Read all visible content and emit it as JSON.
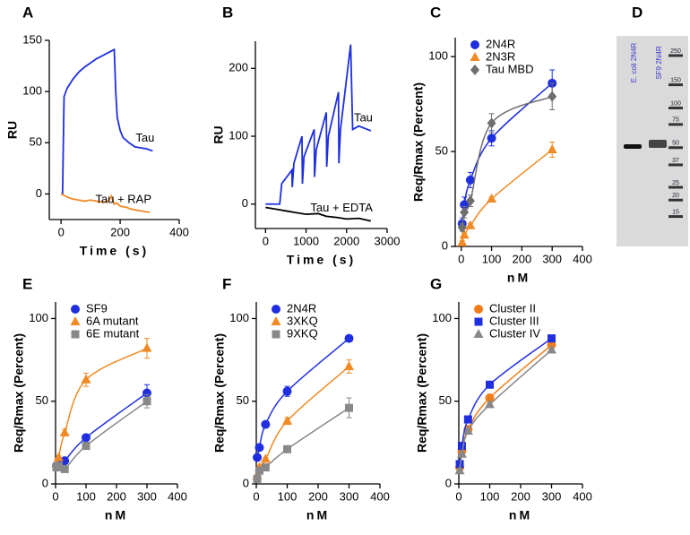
{
  "chart_data": [
    {
      "type": "line",
      "panel": "A",
      "x_label": "Time (s)",
      "y_label": "RU",
      "xlim": [
        -40,
        400
      ],
      "xticks": [
        0,
        200,
        400
      ],
      "ylim": [
        -25,
        150
      ],
      "yticks": [
        0,
        50,
        100,
        150
      ],
      "series": [
        {
          "name": "Tau",
          "color": "#1f2fe0",
          "x": [
            0,
            5,
            10,
            20,
            40,
            60,
            80,
            100,
            120,
            140,
            160,
            180,
            185,
            190,
            200,
            210,
            230,
            250,
            270,
            290,
            310
          ],
          "values": [
            0,
            0,
            95,
            103,
            112,
            119,
            124,
            128,
            132,
            135,
            138,
            141,
            100,
            75,
            62,
            55,
            50,
            46,
            45,
            44,
            42
          ]
        },
        {
          "name": "Tau + RAP",
          "color": "#f08a24",
          "x": [
            0,
            20,
            40,
            60,
            80,
            100,
            120,
            140,
            160,
            170,
            180,
            190,
            200,
            220,
            240,
            260,
            280,
            300
          ],
          "values": [
            0,
            -3,
            -5,
            -6,
            -7,
            -6,
            -7,
            -8,
            -7,
            -2,
            -10,
            -9,
            -12,
            -13,
            -15,
            -16,
            -17,
            -18
          ]
        }
      ]
    },
    {
      "type": "line",
      "panel": "B",
      "x_label": "Time (s)",
      "y_label": "RU",
      "xlim": [
        -250,
        3000
      ],
      "xticks": [
        0,
        1000,
        2000,
        3000
      ],
      "ylim": [
        -36,
        240
      ],
      "yticks": [
        0,
        100,
        200
      ],
      "series": [
        {
          "name": "Tau",
          "color": "#1f2fe0",
          "x": [
            0,
            350,
            400,
            650,
            660,
            700,
            900,
            910,
            950,
            1200,
            1210,
            1250,
            1500,
            1510,
            1550,
            1800,
            1810,
            1850,
            2100,
            2150,
            2300,
            2600
          ],
          "values": [
            0,
            0,
            30,
            50,
            25,
            60,
            100,
            30,
            70,
            110,
            40,
            80,
            135,
            55,
            100,
            165,
            60,
            110,
            235,
            110,
            115,
            108
          ]
        },
        {
          "name": "Tau + EDTA",
          "color": "#000000",
          "x": [
            0,
            300,
            500,
            700,
            1000,
            1300,
            1500,
            1800,
            2000,
            2300,
            2600
          ],
          "values": [
            -5,
            -8,
            -10,
            -12,
            -15,
            -14,
            -18,
            -20,
            -22,
            -21,
            -25
          ]
        }
      ]
    },
    {
      "type": "scatter",
      "panel": "C",
      "x_label": "nM",
      "y_label": "Req/Rmax (Percent)",
      "legend": "upper left",
      "xlim": [
        -20,
        400
      ],
      "xticks": [
        0,
        100,
        200,
        300,
        400
      ],
      "ylim": [
        0,
        110
      ],
      "yticks": [
        0,
        50,
        100
      ],
      "series": [
        {
          "name": "2N4R",
          "color": "#1f2fe0",
          "marker": "circle",
          "x": [
            3,
            10,
            30,
            100,
            300
          ],
          "values": [
            12,
            22,
            35,
            57,
            86
          ],
          "errors": [
            3,
            4,
            4,
            4,
            7
          ]
        },
        {
          "name": "2N3R",
          "color": "#f08a24",
          "marker": "triangle",
          "x": [
            3,
            10,
            30,
            100,
            300
          ],
          "values": [
            2,
            6,
            11,
            25,
            51
          ],
          "errors": [
            1,
            1,
            1,
            1,
            4
          ]
        },
        {
          "name": "Tau MBD",
          "color": "#6e6e6e",
          "marker": "diamond",
          "x": [
            3,
            10,
            30,
            100,
            300
          ],
          "values": [
            10,
            18,
            24,
            65,
            79
          ],
          "errors": [
            2,
            3,
            3,
            5,
            7
          ]
        }
      ]
    },
    {
      "type": "gel",
      "panel": "D",
      "lanes": [
        "E. coli 2N4R",
        "SF9 2N4R"
      ],
      "markers": [
        250,
        150,
        100,
        75,
        50,
        37,
        25,
        20,
        15
      ]
    },
    {
      "type": "scatter",
      "panel": "E",
      "x_label": "nM",
      "y_label": "Req/Rmax (Percent)",
      "legend": "upper left",
      "xlim": [
        0,
        400
      ],
      "xticks": [
        0,
        100,
        200,
        300,
        400
      ],
      "ylim": [
        0,
        110
      ],
      "yticks": [
        0,
        50,
        100
      ],
      "series": [
        {
          "name": "SF9",
          "color": "#1f2fe0",
          "marker": "circle",
          "x": [
            3,
            10,
            30,
            100,
            300
          ],
          "values": [
            11,
            12,
            14,
            28,
            55
          ],
          "errors": [
            1,
            1,
            1,
            2,
            5
          ]
        },
        {
          "name": "6A mutant",
          "color": "#f08a24",
          "marker": "triangle",
          "x": [
            3,
            10,
            30,
            100,
            300
          ],
          "values": [
            12,
            16,
            31,
            63,
            82
          ],
          "errors": [
            1,
            1,
            2,
            4,
            6
          ]
        },
        {
          "name": "6E mutant",
          "color": "#888888",
          "marker": "square",
          "x": [
            3,
            10,
            30,
            100,
            300
          ],
          "values": [
            10,
            11,
            9,
            23,
            50
          ],
          "errors": [
            1,
            1,
            1,
            2,
            4
          ]
        }
      ]
    },
    {
      "type": "scatter",
      "panel": "F",
      "x_label": "nM",
      "y_label": "Req/Rmax (Percent)",
      "legend": "upper left",
      "xlim": [
        0,
        400
      ],
      "xticks": [
        0,
        100,
        200,
        300,
        400
      ],
      "ylim": [
        0,
        110
      ],
      "yticks": [
        0,
        50,
        100
      ],
      "series": [
        {
          "name": "2N4R",
          "color": "#1f2fe0",
          "marker": "circle",
          "x": [
            3,
            10,
            30,
            100,
            300
          ],
          "values": [
            16,
            22,
            36,
            56,
            88
          ],
          "errors": [
            1,
            1,
            1,
            3,
            2
          ]
        },
        {
          "name": "3XKQ",
          "color": "#f08a24",
          "marker": "triangle",
          "x": [
            3,
            10,
            30,
            100,
            300
          ],
          "values": [
            5,
            10,
            15,
            38,
            71
          ],
          "errors": [
            1,
            1,
            1,
            2,
            4
          ]
        },
        {
          "name": "9XKQ",
          "color": "#888888",
          "marker": "square",
          "x": [
            3,
            10,
            30,
            100,
            300
          ],
          "values": [
            3,
            8,
            10,
            21,
            46
          ],
          "errors": [
            1,
            1,
            1,
            2,
            6
          ]
        }
      ]
    },
    {
      "type": "scatter",
      "panel": "G",
      "x_label": "nM",
      "y_label": "Req/Rmax (Percent)",
      "legend": "upper left",
      "xlim": [
        0,
        400
      ],
      "xticks": [
        0,
        100,
        200,
        300,
        400
      ],
      "ylim": [
        0,
        110
      ],
      "yticks": [
        0,
        50,
        100
      ],
      "series": [
        {
          "name": "Cluster II",
          "color": "#f07d1a",
          "marker": "circle",
          "x": [
            3,
            10,
            30,
            100,
            300
          ],
          "values": [
            10,
            20,
            33,
            52,
            84
          ],
          "errors": [
            1,
            1,
            1,
            1,
            1
          ]
        },
        {
          "name": "Cluster III",
          "color": "#1f2fe0",
          "marker": "square",
          "x": [
            3,
            10,
            30,
            100,
            300
          ],
          "values": [
            12,
            23,
            39,
            60,
            88
          ],
          "errors": [
            1,
            1,
            1,
            1,
            1
          ]
        },
        {
          "name": "Cluster IV",
          "color": "#888888",
          "marker": "triangle",
          "x": [
            3,
            10,
            30,
            100,
            300
          ],
          "values": [
            8,
            18,
            32,
            48,
            81
          ],
          "errors": [
            1,
            1,
            1,
            1,
            1
          ]
        }
      ]
    }
  ]
}
